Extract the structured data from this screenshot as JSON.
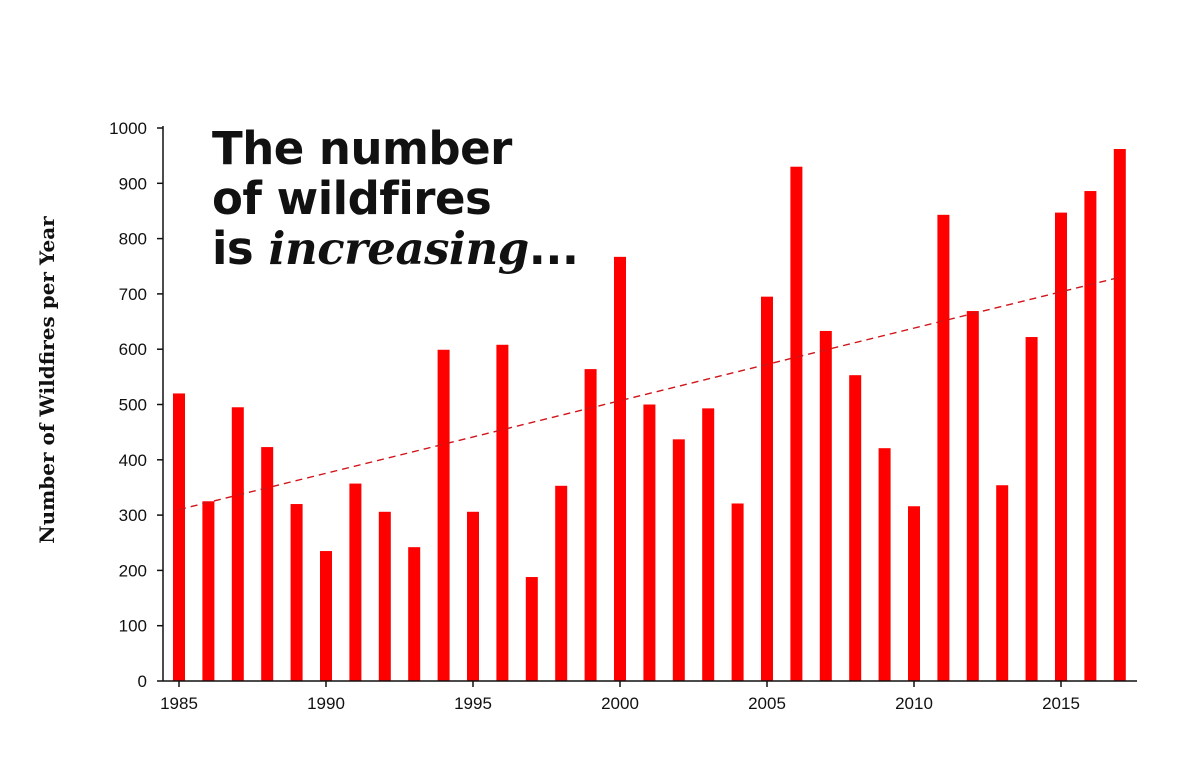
{
  "headline": {
    "line1": "The number",
    "line2": "of wildfires",
    "line3_prefix": "is ",
    "line3_emphasis": "increasing",
    "line3_suffix": "..."
  },
  "colors": {
    "bar": "#ff0000",
    "trend": "#d0141a",
    "axis": "#111111"
  },
  "chart_data": {
    "type": "bar",
    "title": "The number of wildfires is increasing...",
    "ylabel": "Number of Wildfires per Year",
    "xlabel": "",
    "ylim": [
      0,
      1000
    ],
    "yticks": [
      0,
      100,
      200,
      300,
      400,
      500,
      600,
      700,
      800,
      900,
      1000
    ],
    "xticks": [
      1985,
      1990,
      1995,
      2000,
      2005,
      2010,
      2015
    ],
    "categories": [
      1985,
      1986,
      1987,
      1988,
      1989,
      1990,
      1991,
      1992,
      1993,
      1994,
      1995,
      1996,
      1997,
      1998,
      1999,
      2000,
      2001,
      2002,
      2003,
      2004,
      2005,
      2006,
      2007,
      2008,
      2009,
      2010,
      2011,
      2012,
      2013,
      2014,
      2015,
      2016,
      2017
    ],
    "values": [
      520,
      325,
      495,
      423,
      320,
      235,
      357,
      306,
      242,
      599,
      306,
      608,
      188,
      353,
      564,
      767,
      500,
      437,
      493,
      321,
      695,
      930,
      633,
      553,
      421,
      316,
      843,
      669,
      354,
      622,
      847,
      886,
      962
    ],
    "trendline": {
      "style": "dashed",
      "start": [
        1985,
        310
      ],
      "end": [
        2017,
        730
      ]
    },
    "grid": false,
    "legend": "none"
  }
}
